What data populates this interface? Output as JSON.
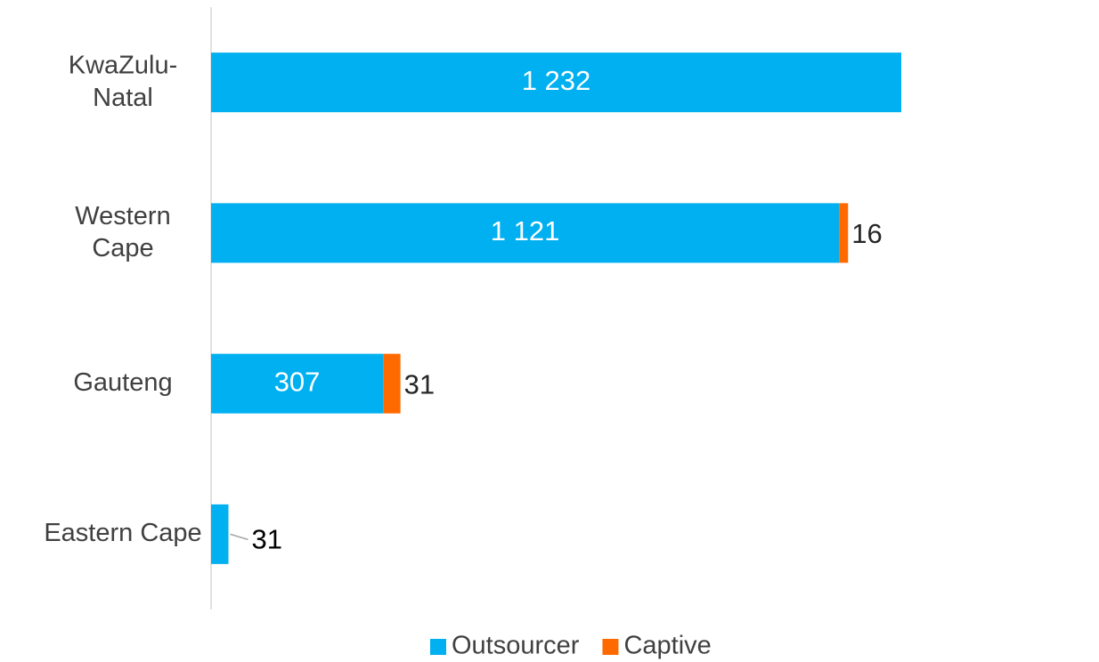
{
  "chart_data": {
    "type": "stacked-barh",
    "categories": [
      "KwaZulu-\nNatal",
      "Western\nCape",
      "Gauteng",
      "Eastern Cape"
    ],
    "series": [
      {
        "name": "Outsourcer",
        "color": "#00b0f0",
        "values": [
          1232,
          1121,
          307,
          31
        ],
        "value_labels": [
          "1 232",
          "1 121",
          "307",
          "31"
        ]
      },
      {
        "name": "Captive",
        "color": "#ff6a00",
        "values": [
          null,
          16,
          31,
          null
        ],
        "value_labels": [
          null,
          "16",
          "31",
          null
        ]
      }
    ],
    "legend": "bottom"
  }
}
